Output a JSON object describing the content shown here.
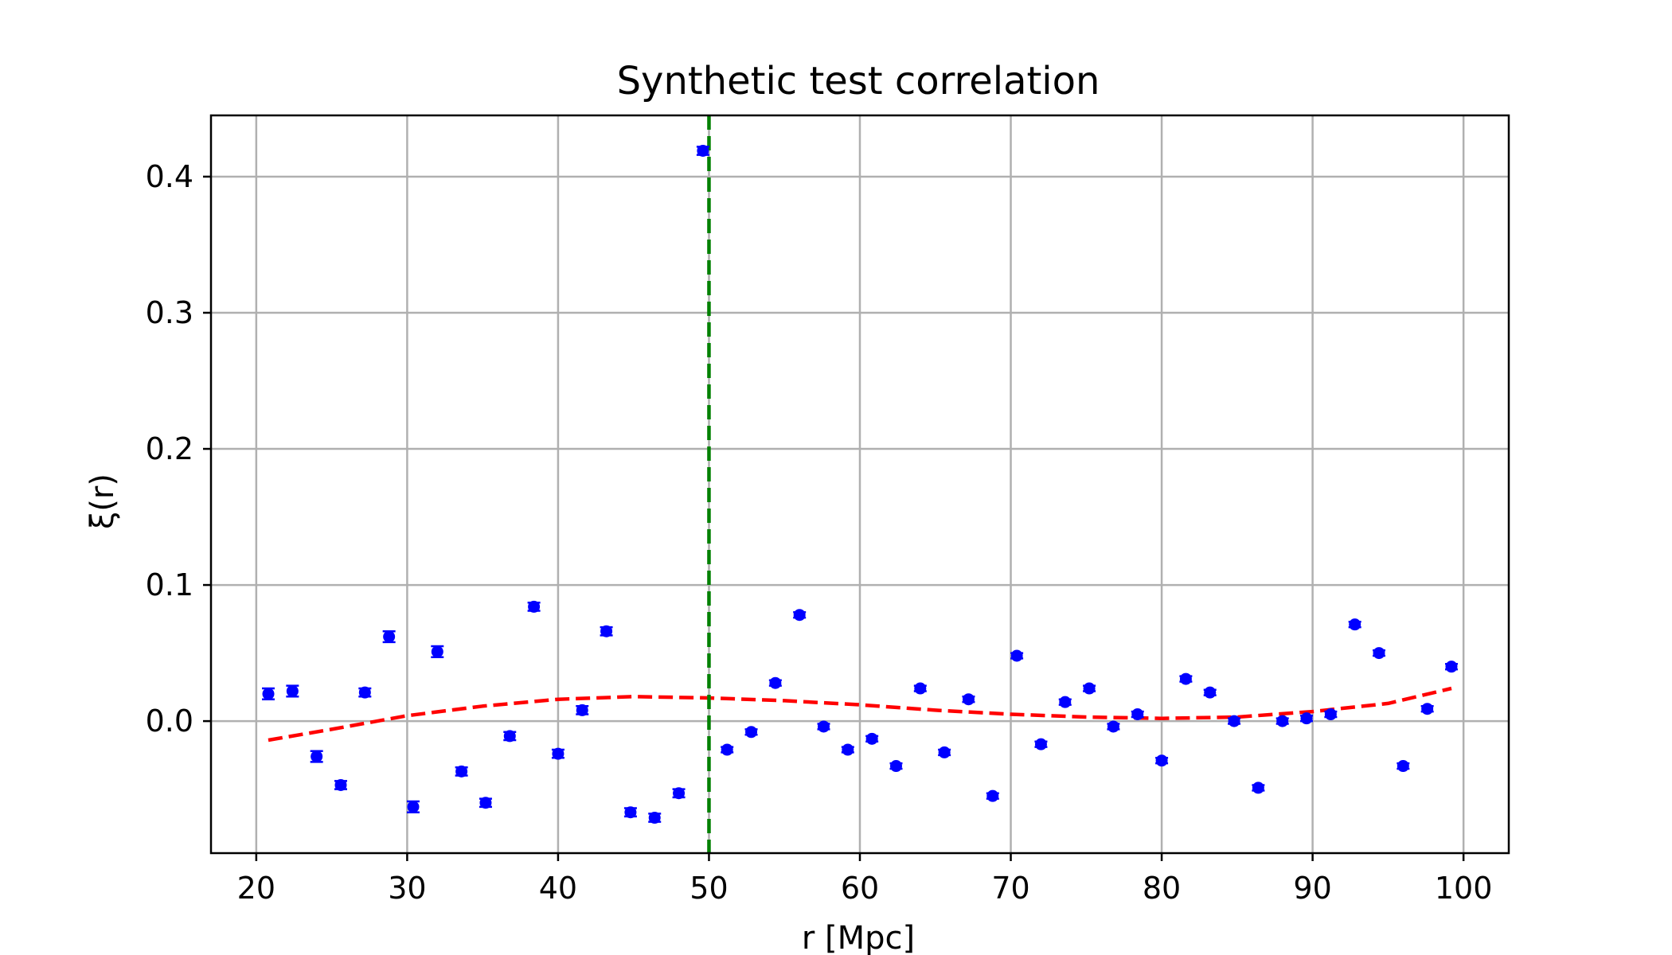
{
  "chart_data": {
    "type": "scatter",
    "title": "Synthetic test correlation",
    "xlabel": "r [Mpc]",
    "ylabel": "ξ(r)",
    "xlim": [
      17,
      103
    ],
    "ylim": [
      -0.097,
      0.445
    ],
    "xticks": [
      20,
      30,
      40,
      50,
      60,
      70,
      80,
      90,
      100
    ],
    "yticks": [
      0.0,
      0.1,
      0.2,
      0.3,
      0.4
    ],
    "grid": true,
    "colors": {
      "points": "#0000ff",
      "fit": "#ff0000",
      "vline": "#008000",
      "grid": "#b0b0b0"
    },
    "points": [
      {
        "x": 20.8,
        "y": 0.02,
        "err": 0.004
      },
      {
        "x": 22.4,
        "y": 0.022,
        "err": 0.004
      },
      {
        "x": 24.0,
        "y": -0.026,
        "err": 0.004
      },
      {
        "x": 25.6,
        "y": -0.047,
        "err": 0.003
      },
      {
        "x": 27.2,
        "y": 0.021,
        "err": 0.003
      },
      {
        "x": 28.8,
        "y": 0.062,
        "err": 0.004
      },
      {
        "x": 30.4,
        "y": -0.063,
        "err": 0.004
      },
      {
        "x": 32.0,
        "y": 0.051,
        "err": 0.004
      },
      {
        "x": 33.6,
        "y": -0.037,
        "err": 0.003
      },
      {
        "x": 35.2,
        "y": -0.06,
        "err": 0.003
      },
      {
        "x": 36.8,
        "y": -0.011,
        "err": 0.003
      },
      {
        "x": 38.4,
        "y": 0.084,
        "err": 0.003
      },
      {
        "x": 40.0,
        "y": -0.024,
        "err": 0.003
      },
      {
        "x": 41.6,
        "y": 0.008,
        "err": 0.003
      },
      {
        "x": 43.2,
        "y": 0.066,
        "err": 0.003
      },
      {
        "x": 44.8,
        "y": -0.067,
        "err": 0.003
      },
      {
        "x": 46.4,
        "y": -0.071,
        "err": 0.003
      },
      {
        "x": 48.0,
        "y": -0.053,
        "err": 0.003
      },
      {
        "x": 49.6,
        "y": 0.419,
        "err": 0.003
      },
      {
        "x": 51.2,
        "y": -0.021,
        "err": 0.002
      },
      {
        "x": 52.8,
        "y": -0.008,
        "err": 0.002
      },
      {
        "x": 54.4,
        "y": 0.028,
        "err": 0.002
      },
      {
        "x": 56.0,
        "y": 0.078,
        "err": 0.002
      },
      {
        "x": 57.6,
        "y": -0.004,
        "err": 0.002
      },
      {
        "x": 59.2,
        "y": -0.021,
        "err": 0.002
      },
      {
        "x": 60.8,
        "y": -0.013,
        "err": 0.002
      },
      {
        "x": 62.4,
        "y": -0.033,
        "err": 0.002
      },
      {
        "x": 64.0,
        "y": 0.024,
        "err": 0.002
      },
      {
        "x": 65.6,
        "y": -0.023,
        "err": 0.002
      },
      {
        "x": 67.2,
        "y": 0.016,
        "err": 0.002
      },
      {
        "x": 68.8,
        "y": -0.055,
        "err": 0.002
      },
      {
        "x": 70.4,
        "y": 0.048,
        "err": 0.002
      },
      {
        "x": 72.0,
        "y": -0.017,
        "err": 0.002
      },
      {
        "x": 73.6,
        "y": 0.014,
        "err": 0.002
      },
      {
        "x": 75.2,
        "y": 0.024,
        "err": 0.002
      },
      {
        "x": 76.8,
        "y": -0.004,
        "err": 0.002
      },
      {
        "x": 78.4,
        "y": 0.005,
        "err": 0.002
      },
      {
        "x": 80.0,
        "y": -0.029,
        "err": 0.002
      },
      {
        "x": 81.6,
        "y": 0.031,
        "err": 0.002
      },
      {
        "x": 83.2,
        "y": 0.021,
        "err": 0.002
      },
      {
        "x": 84.8,
        "y": 0.0,
        "err": 0.002
      },
      {
        "x": 86.4,
        "y": -0.049,
        "err": 0.002
      },
      {
        "x": 88.0,
        "y": 0.0,
        "err": 0.002
      },
      {
        "x": 89.6,
        "y": 0.002,
        "err": 0.002
      },
      {
        "x": 91.2,
        "y": 0.005,
        "err": 0.002
      },
      {
        "x": 92.8,
        "y": 0.071,
        "err": 0.002
      },
      {
        "x": 94.4,
        "y": 0.05,
        "err": 0.002
      },
      {
        "x": 96.0,
        "y": -0.033,
        "err": 0.002
      },
      {
        "x": 97.6,
        "y": 0.009,
        "err": 0.002
      },
      {
        "x": 99.2,
        "y": 0.04,
        "err": 0.002
      }
    ],
    "fit_curve": {
      "x": [
        20.8,
        25,
        30,
        35,
        40,
        45,
        50,
        55,
        60,
        65,
        70,
        75,
        80,
        85,
        90,
        95,
        99.2
      ],
      "y": [
        -0.014,
        -0.006,
        0.004,
        0.011,
        0.016,
        0.018,
        0.017,
        0.015,
        0.012,
        0.008,
        0.005,
        0.003,
        0.002,
        0.003,
        0.007,
        0.013,
        0.024
      ]
    },
    "vline_x": 50
  }
}
